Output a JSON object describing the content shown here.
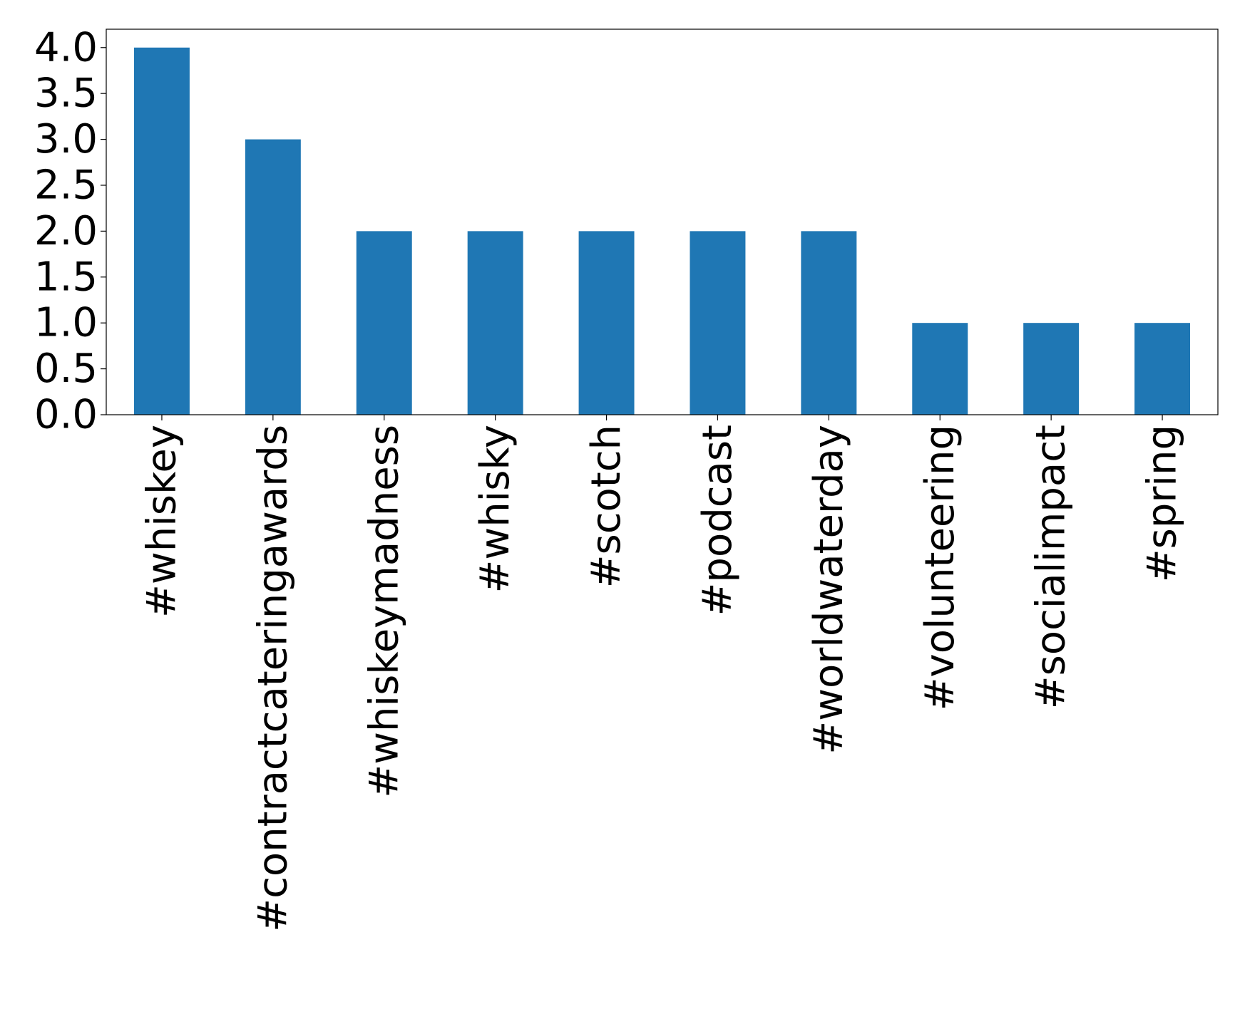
{
  "chart_data": {
    "type": "bar",
    "categories": [
      "#whiskey",
      "#contractcateringawards",
      "#whiskeymadness",
      "#whisky",
      "#scotch",
      "#podcast",
      "#worldwaterday",
      "#volunteering",
      "#socialimpact",
      "#spring"
    ],
    "values": [
      4,
      3,
      2,
      2,
      2,
      2,
      2,
      1,
      1,
      1
    ],
    "color": "#1f77b4",
    "ylim": [
      0,
      4.2
    ],
    "yticks": [
      {
        "value": 0,
        "label": "0.0"
      },
      {
        "value": 0.5,
        "label": "0.5"
      },
      {
        "value": 1,
        "label": "1.0"
      },
      {
        "value": 1.5,
        "label": "1.5"
      },
      {
        "value": 2,
        "label": "2.0"
      },
      {
        "value": 2.5,
        "label": "2.5"
      },
      {
        "value": 3,
        "label": "3.0"
      },
      {
        "value": 3.5,
        "label": "3.5"
      },
      {
        "value": 4,
        "label": "4.0"
      }
    ],
    "grid": false
  }
}
